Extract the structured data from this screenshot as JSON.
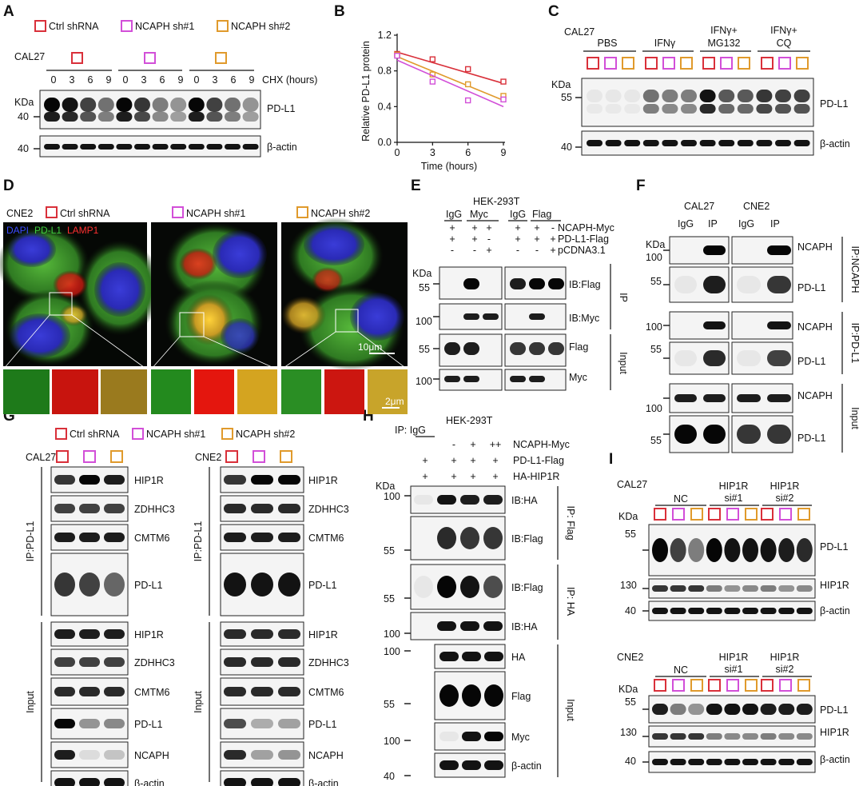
{
  "panels": {
    "A": {
      "label": "A",
      "legend": [
        "Ctrl shRNA",
        "NCAPH sh#1",
        "NCAPH sh#2"
      ],
      "cell": "CAL27",
      "times": [
        "0",
        "3",
        "6",
        "9",
        "0",
        "3",
        "6",
        "9",
        "0",
        "3",
        "6",
        "9"
      ],
      "treatment": "CHX (hours)",
      "kda": "KDa",
      "mw": [
        "40",
        "40"
      ],
      "blots": [
        "PD-L1",
        "β-actin"
      ]
    },
    "B": {
      "label": "B"
    },
    "C": {
      "label": "C",
      "cell": "CAL27",
      "groups": [
        "PBS",
        "IFNγ",
        "IFNγ+",
        "MG132",
        "IFNγ+",
        "CQ"
      ],
      "kda": "KDa",
      "mw": [
        "55",
        "40"
      ],
      "blots": [
        "PD-L1",
        "β-actin"
      ]
    },
    "D": {
      "label": "D",
      "cell": "CNE2",
      "groups": [
        "Ctrl shRNA",
        "NCAPH sh#1",
        "NCAPH sh#2"
      ],
      "stains": [
        "DAPI",
        "PD-L1",
        "LAMP1"
      ],
      "scalebar": "10μm",
      "inset_scalebar": "2μm"
    },
    "E": {
      "label": "E",
      "cell": "HEK-293T",
      "ab_header": [
        "IgG",
        "Myc",
        "IgG",
        "Flag"
      ],
      "rows": [
        "NCAPH-Myc",
        "PD-L1-Flag",
        "pCDNA3.1"
      ],
      "signs_left": [
        "+",
        "+",
        "+",
        "+",
        "+",
        "-",
        "-",
        "-",
        "+"
      ],
      "signs_right": [
        "+",
        "+",
        "-",
        "+",
        "+",
        "+",
        "-",
        "-",
        "+"
      ],
      "kda": "KDa",
      "mw": [
        "55",
        "100",
        "55",
        "100"
      ],
      "blots": [
        "IB:Flag",
        "IB:Myc",
        "Flag",
        "Myc"
      ],
      "groups": [
        "IP",
        "Input"
      ]
    },
    "F": {
      "label": "F",
      "cells": [
        "CAL27",
        "CNE2"
      ],
      "lanes": [
        "IgG",
        "IP",
        "IgG",
        "IP"
      ],
      "kda": "KDa",
      "mw": [
        "100",
        "55",
        "100",
        "55",
        "100",
        "55"
      ],
      "blots": [
        "NCAPH",
        "PD-L1",
        "NCAPH",
        "PD-L1",
        "NCAPH",
        "PD-L1"
      ],
      "groups": [
        "IP:NCAPH",
        "IP:PD-L1",
        "Input"
      ]
    },
    "G": {
      "label": "G",
      "legend": [
        "Ctrl shRNA",
        "NCAPH sh#1",
        "NCAPH sh#2"
      ],
      "cells": [
        "CAL27",
        "CNE2"
      ],
      "blots": [
        "HIP1R",
        "ZDHHC3",
        "CMTM6",
        "PD-L1",
        "HIP1R",
        "ZDHHC3",
        "CMTM6",
        "PD-L1",
        "NCAPH",
        "β-actin"
      ],
      "groups": [
        "IP:PD-L1",
        "Input"
      ]
    },
    "H": {
      "label": "H",
      "ip_label": "IP: IgG",
      "cell": "HEK-293T",
      "rows": [
        "NCAPH-Myc",
        "PD-L1-Flag",
        "HA-HIP1R"
      ],
      "signs": [
        "",
        "-",
        "+",
        "++",
        "+",
        "+",
        "+",
        "+",
        "+",
        "+",
        "+",
        "+"
      ],
      "kda": "KDa",
      "mw": [
        "100",
        "55",
        "55",
        "100",
        "100",
        "55",
        "100",
        "40"
      ],
      "blots": [
        "IB:HA",
        "IB:Flag",
        "IB:Flag",
        "IB:HA",
        "HA",
        "Flag",
        "Myc",
        "β-actin"
      ],
      "groups": [
        "IP: Flag",
        "IP: HA",
        "Input"
      ]
    },
    "I": {
      "label": "I",
      "cells": [
        "CAL27",
        "CNE2"
      ],
      "groups": [
        "NC",
        "HIP1R",
        "si#1",
        "HIP1R",
        "si#2"
      ],
      "kda": "KDa",
      "mw_top": [
        "55",
        "130",
        "40"
      ],
      "mw_bottom": [
        "55",
        "130",
        "40"
      ],
      "blots": [
        "PD-L1",
        "HIP1R",
        "β-actin"
      ]
    }
  },
  "chart_data": {
    "type": "scatter",
    "ylabel": "Relative PD-L1 protein",
    "xlabel": "Time (hours)",
    "xlim": [
      0,
      9
    ],
    "ylim": [
      0,
      1.2
    ],
    "xticks": [
      "0",
      "3",
      "6",
      "9"
    ],
    "yticks": [
      "0.0",
      "0.4",
      "0.8",
      "1.2"
    ],
    "series": [
      {
        "color": "#d9303a",
        "x": [
          0,
          3,
          6,
          9
        ],
        "y": [
          0.99,
          0.93,
          0.82,
          0.68
        ],
        "fit": [
          1.01,
          0.66
        ]
      },
      {
        "color": "#e09a2c",
        "x": [
          0,
          3,
          6,
          9
        ],
        "y": [
          0.98,
          0.76,
          0.65,
          0.52
        ],
        "fit": [
          0.96,
          0.47
        ]
      },
      {
        "color": "#d24fd8",
        "x": [
          0,
          3,
          6,
          9
        ],
        "y": [
          0.97,
          0.68,
          0.47,
          0.48
        ],
        "fit": [
          0.92,
          0.4
        ]
      }
    ]
  },
  "colors": {
    "ctrl": "#d9303a",
    "sh1": "#d24fd8",
    "sh2": "#e09a2c",
    "gel": "#f4f4f4",
    "band": "#060606"
  }
}
